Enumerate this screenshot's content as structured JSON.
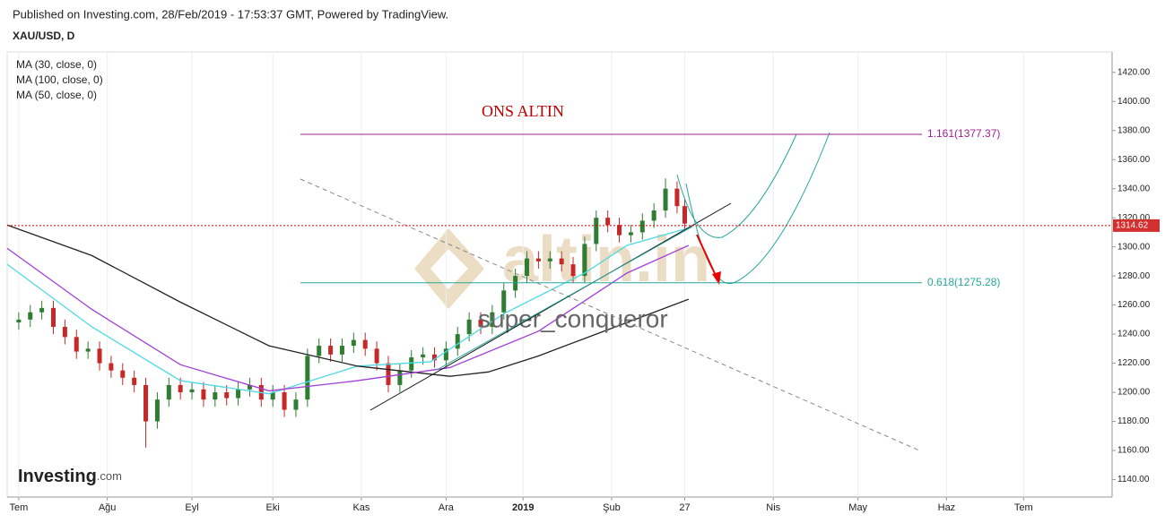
{
  "header": {
    "published": "Published on Investing.com, 28/Feb/2019 - 17:53:37 GMT, Powered by TradingView.",
    "symbol": "XAU/USD, D"
  },
  "chart_data": {
    "type": "candlestick",
    "title": "ONS ALTIN",
    "x": [
      0,
      3,
      6,
      9,
      12,
      15,
      18,
      21,
      24,
      27,
      30,
      33,
      36,
      39,
      42,
      45,
      48,
      51,
      54,
      57,
      60,
      63,
      66,
      69,
      72,
      75,
      78,
      81,
      84,
      87,
      90,
      93,
      96,
      99,
      102,
      105,
      108,
      111,
      114,
      117,
      120,
      123,
      126,
      129,
      132,
      135,
      138,
      141,
      144,
      147,
      150,
      153,
      156,
      159,
      162,
      165,
      168,
      171,
      173
    ],
    "open": [
      1248,
      1250,
      1255,
      1258,
      1245,
      1238,
      1228,
      1230,
      1220,
      1215,
      1210,
      1205,
      1180,
      1195,
      1205,
      1200,
      1202,
      1195,
      1200,
      1196,
      1202,
      1205,
      1195,
      1200,
      1188,
      1195,
      1225,
      1232,
      1226,
      1232,
      1236,
      1230,
      1220,
      1205,
      1215,
      1224,
      1226,
      1222,
      1230,
      1240,
      1250,
      1245,
      1255,
      1270,
      1280,
      1292,
      1290,
      1292,
      1288,
      1280,
      1302,
      1320,
      1315,
      1308,
      1310,
      1318,
      1325,
      1340,
      1328
    ],
    "high": [
      1255,
      1260,
      1263,
      1263,
      1250,
      1243,
      1235,
      1235,
      1225,
      1220,
      1215,
      1210,
      1200,
      1210,
      1210,
      1207,
      1207,
      1205,
      1205,
      1207,
      1210,
      1210,
      1205,
      1205,
      1200,
      1230,
      1237,
      1237,
      1237,
      1241,
      1241,
      1235,
      1225,
      1220,
      1229,
      1231,
      1231,
      1235,
      1245,
      1255,
      1255,
      1260,
      1275,
      1285,
      1297,
      1297,
      1297,
      1297,
      1293,
      1307,
      1325,
      1325,
      1320,
      1315,
      1323,
      1330,
      1347,
      1345,
      1333
    ],
    "low": [
      1243,
      1245,
      1250,
      1240,
      1233,
      1223,
      1223,
      1215,
      1210,
      1205,
      1200,
      1162,
      1175,
      1190,
      1195,
      1195,
      1190,
      1190,
      1191,
      1191,
      1197,
      1190,
      1190,
      1183,
      1183,
      1190,
      1220,
      1221,
      1221,
      1227,
      1225,
      1215,
      1200,
      1200,
      1210,
      1219,
      1217,
      1217,
      1225,
      1235,
      1240,
      1240,
      1250,
      1265,
      1275,
      1285,
      1285,
      1283,
      1275,
      1275,
      1297,
      1310,
      1303,
      1303,
      1305,
      1313,
      1320,
      1323,
      1311
    ],
    "close": [
      1250,
      1255,
      1258,
      1245,
      1238,
      1228,
      1230,
      1220,
      1215,
      1210,
      1205,
      1180,
      1195,
      1205,
      1200,
      1202,
      1195,
      1200,
      1196,
      1202,
      1205,
      1195,
      1200,
      1188,
      1195,
      1225,
      1232,
      1226,
      1232,
      1236,
      1230,
      1220,
      1205,
      1215,
      1224,
      1226,
      1222,
      1230,
      1240,
      1250,
      1245,
      1255,
      1270,
      1280,
      1292,
      1290,
      1292,
      1288,
      1280,
      1302,
      1320,
      1315,
      1308,
      1310,
      1318,
      1325,
      1340,
      1328,
      1316
    ],
    "up_color": "#2e7d32",
    "down_color": "#c62828",
    "series": [
      {
        "name": "MA (30, close, 0)",
        "color": "#4dd9e6",
        "x": [
          -3,
          19,
          42,
          65,
          88,
          107,
          126,
          147,
          158,
          174
        ],
        "values": [
          1288,
          1245,
          1208,
          1199,
          1218,
          1221,
          1254,
          1282,
          1301,
          1313
        ]
      },
      {
        "name": "MA (100, close, 0)",
        "color": "#222222",
        "x": [
          -3,
          19,
          42,
          65,
          88,
          112,
          122,
          135,
          158,
          174
        ],
        "values": [
          1315,
          1294,
          1262,
          1232,
          1218,
          1211,
          1214,
          1225,
          1248,
          1264
        ]
      },
      {
        "name": "MA (50, close, 0)",
        "color": "#a13fd6",
        "x": [
          -3,
          19,
          42,
          65,
          88,
          112,
          135,
          158,
          174
        ],
        "values": [
          1299,
          1257,
          1219,
          1201,
          1208,
          1217,
          1242,
          1282,
          1301
        ]
      }
    ],
    "fib_levels": [
      {
        "label": "1.161(1377.37)",
        "value": 1377.37,
        "color": "#a0208f"
      },
      {
        "label": "0.618(1275.28)",
        "value": 1275.28,
        "color": "#26a69a"
      }
    ],
    "last_price": 1314.62,
    "xlim": [
      -3,
      284
    ],
    "ylim": [
      1128,
      1434
    ],
    "xticks": [
      {
        "value": 0,
        "label": "Tem"
      },
      {
        "value": 23,
        "label": "Ağu"
      },
      {
        "value": 45,
        "label": "Eyl"
      },
      {
        "value": 66,
        "label": "Eki"
      },
      {
        "value": 89,
        "label": "Kas"
      },
      {
        "value": 111,
        "label": "Ara"
      },
      {
        "value": 131,
        "label": "2019"
      },
      {
        "value": 154,
        "label": "Şub"
      },
      {
        "value": 173,
        "label": "27"
      },
      {
        "value": 196,
        "label": "Nis"
      },
      {
        "value": 218,
        "label": "May"
      },
      {
        "value": 241,
        "label": "Haz"
      },
      {
        "value": 261,
        "label": "Tem"
      }
    ],
    "yticks": [
      {
        "value": 1140,
        "label": "1140.00"
      },
      {
        "value": 1160,
        "label": "1160.00"
      },
      {
        "value": 1180,
        "label": "1180.00"
      },
      {
        "value": 1200,
        "label": "1200.00"
      },
      {
        "value": 1220,
        "label": "1220.00"
      },
      {
        "value": 1240,
        "label": "1240.00"
      },
      {
        "value": 1260,
        "label": "1260.00"
      },
      {
        "value": 1280,
        "label": "1280.00"
      },
      {
        "value": 1300,
        "label": "1300.00"
      },
      {
        "value": 1320,
        "label": "1320.00"
      },
      {
        "value": 1340,
        "label": "1340.00"
      },
      {
        "value": 1360,
        "label": "1360.00"
      },
      {
        "value": 1380,
        "label": "1380.00"
      },
      {
        "value": 1400,
        "label": "1400.00"
      },
      {
        "value": 1420,
        "label": "1420.00"
      }
    ],
    "grid": true,
    "watermark": {
      "brand": "altin.in",
      "author": "super_conqueror",
      "logo": "Investing",
      "logo_suffix": ".com"
    }
  }
}
